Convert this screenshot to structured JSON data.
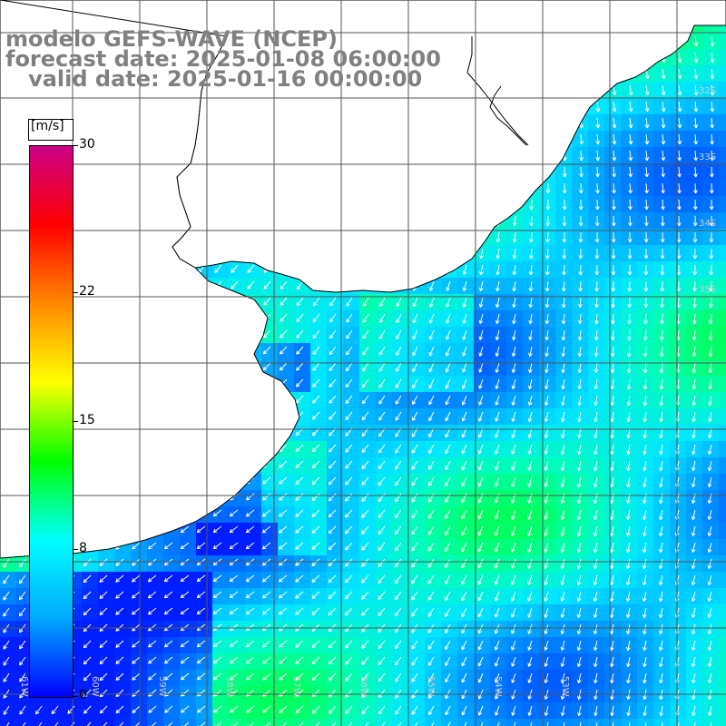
{
  "title": {
    "line1": "modelo GEFS-WAVE (NCEP)",
    "line2": "forecast date: 2025-01-08 06:00:00",
    "line3": "   valid date: 2025-01-16 00:00:00"
  },
  "colorbar": {
    "unit": "[m/s]",
    "ticks": [
      "30",
      "22",
      "15",
      "8",
      "0"
    ],
    "tick_values": [
      30,
      22,
      15,
      8,
      0
    ],
    "range": [
      0,
      30
    ],
    "colors": [
      "#0000ff",
      "#00aaff",
      "#00ffff",
      "#00ff00",
      "#ffff00",
      "#ff8800",
      "#ff0000",
      "#cc0088"
    ]
  },
  "map": {
    "lat_labels": [
      "32S",
      "33S",
      "34S",
      "35S"
    ],
    "lon_labels": [
      "61W",
      "60W",
      "59W",
      "58W",
      "57W",
      "56W",
      "55W",
      "54W",
      "53W"
    ]
  },
  "colors": {
    "land": "#ffffff",
    "grid": "#444444",
    "coast": "#000000",
    "title": "#808080"
  }
}
